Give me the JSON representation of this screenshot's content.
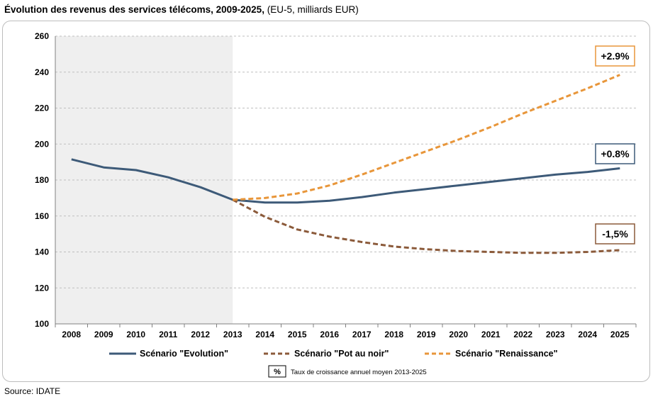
{
  "header": {
    "title_bold": "Évolution des revenus des services télécoms, 2009-2025,",
    "title_rest": " (EU-5, milliards  EUR)"
  },
  "source": "Source: IDATE",
  "colors": {
    "evolution": "#3d5a78",
    "pot_au_noir": "#8b5a3a",
    "renaissance": "#e8963a",
    "shade": "#efefef",
    "grid": "#bfbfbf"
  },
  "chart_data": {
    "type": "line",
    "title": "Évolution des revenus des services télécoms, 2009-2025, (EU-5, milliards  EUR)",
    "x": [
      2008,
      2009,
      2010,
      2011,
      2012,
      2013,
      2014,
      2015,
      2016,
      2017,
      2018,
      2019,
      2020,
      2021,
      2022,
      2023,
      2024,
      2025
    ],
    "ylim": [
      100,
      260
    ],
    "yticks": [
      100,
      120,
      140,
      160,
      180,
      200,
      220,
      240,
      260
    ],
    "grid": "horizontal-dashed",
    "shaded_range": [
      2008,
      2013
    ],
    "legend_position": "bottom",
    "series": [
      {
        "name": "Scénario \"Evolution\"",
        "style": "solid",
        "color": "#3d5a78",
        "x": [
          2008,
          2009,
          2010,
          2011,
          2012,
          2013,
          2014,
          2015,
          2016,
          2017,
          2018,
          2019,
          2020,
          2021,
          2022,
          2023,
          2024,
          2025
        ],
        "values": [
          191.5,
          187,
          185.5,
          181.5,
          176,
          169,
          167.5,
          167.5,
          168.5,
          170.5,
          173,
          175,
          177,
          179,
          181,
          183,
          184.5,
          186.5
        ],
        "annotation": "+0.8%"
      },
      {
        "name": "Scénario \"Pot au noir\"",
        "style": "dashed",
        "color": "#8b5a3a",
        "x": [
          2013,
          2014,
          2015,
          2016,
          2017,
          2018,
          2019,
          2020,
          2021,
          2022,
          2023,
          2024,
          2025
        ],
        "values": [
          169,
          159.5,
          152.5,
          148.5,
          145.5,
          143,
          141.5,
          140.5,
          140,
          139.5,
          139.5,
          140,
          141
        ],
        "annotation": "-1,5%"
      },
      {
        "name": "Scénario \"Renaissance\"",
        "style": "dashed",
        "color": "#e8963a",
        "x": [
          2013,
          2014,
          2015,
          2016,
          2017,
          2018,
          2019,
          2020,
          2021,
          2022,
          2023,
          2024,
          2025
        ],
        "values": [
          169,
          170,
          172.5,
          177,
          183,
          189.5,
          196,
          202.5,
          209.5,
          217,
          224,
          231,
          238.5
        ],
        "annotation": "+2.9%"
      }
    ],
    "note_box": "%",
    "note_text": "Taux de croissance annuel moyen 2013-2025"
  }
}
